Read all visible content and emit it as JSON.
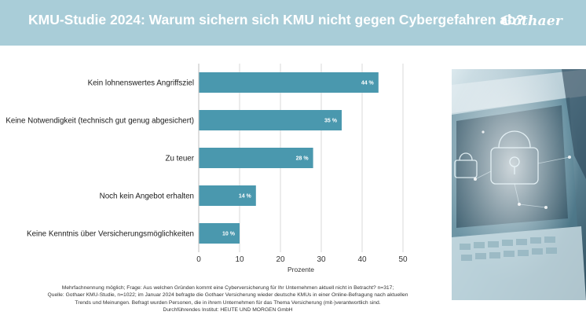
{
  "header": {
    "title": "KMU-Studie 2024: Warum sichern sich KMU nicht gegen Cybergefahren ab?",
    "logo_text": "Gothaer",
    "background_color": "#a9cdd8"
  },
  "chart_data": {
    "type": "bar",
    "orientation": "horizontal",
    "categories": [
      "Kein lohnenswertes Angriffsziel",
      "Keine Notwendigkeit (technisch gut genug abgesichert)",
      "Zu teuer",
      "Noch kein Angebot erhalten",
      "Keine Kenntnis über Versicherungsmöglichkeiten"
    ],
    "values": [
      44,
      35,
      28,
      14,
      10
    ],
    "data_labels": [
      "44 %",
      "35 %",
      "28 %",
      "14 %",
      "10 %"
    ],
    "xlabel": "Prozente",
    "xlim": [
      0,
      50
    ],
    "xticks": [
      0,
      10,
      20,
      30,
      40,
      50
    ],
    "grid": "vertical",
    "bar_color": "#4a98ae"
  },
  "footnote": {
    "lines": [
      "Mehrfachnennung möglich; Frage: Aus welchen Gründen kommt eine Cyberversicherung für Ihr Unternehmen aktuell nicht in Betracht? n=317;",
      "Quelle: Gothaer KMU-Studie, n=1022; im Januar 2024 befragte die Gothaer Versicherung wieder deutsche KMUs in einer Online-Befragung nach aktuellen",
      "Trends und Meinungen. Befragt wurden Personen, die in ihrem Unternehmen für das Thema Versicherung (mit-)verantwortlich sind.",
      "Durchführendes Institut: HEUTE UND MORGEN GmbH"
    ]
  },
  "photo": {
    "icon": "padlock-laptop-photo"
  }
}
